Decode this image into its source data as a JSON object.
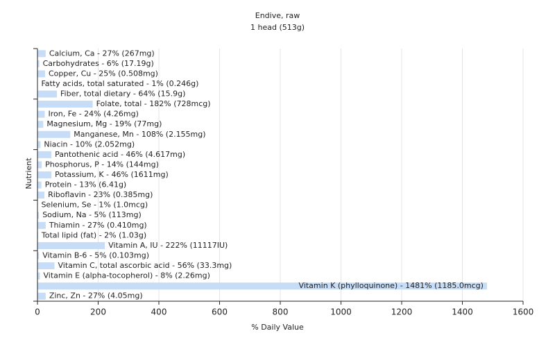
{
  "chart_data": {
    "type": "hbar",
    "title": "Endive, raw",
    "subtitle": "1 head (513g)",
    "x_label": "% Daily Value",
    "y_label": "Nutrient",
    "color": "#c6dcf7",
    "grid": true,
    "values": [
      27,
      6,
      25,
      1,
      64,
      182,
      24,
      19,
      108,
      10,
      46,
      14,
      46,
      13,
      23,
      1,
      5,
      27,
      2,
      222,
      5,
      56,
      8,
      1481,
      27
    ],
    "value_labels": [
      "Calcium, Ca - 27% (267mg)",
      "Carbohydrates - 6% (17.19g)",
      "Copper, Cu - 25% (0.508mg)",
      "Fatty acids, total saturated - 1% (0.246g)",
      "Fiber, total dietary - 64% (15.9g)",
      "Folate, total - 182% (728mcg)",
      "Iron, Fe - 24% (4.26mg)",
      "Magnesium, Mg - 19% (77mg)",
      "Manganese, Mn - 108% (2.155mg)",
      "Niacin - 10% (2.052mg)",
      "Pantothenic acid - 46% (4.617mg)",
      "Phosphorus, P - 14% (144mg)",
      "Potassium, K - 46% (1611mg)",
      "Protein - 13% (6.41g)",
      "Riboflavin - 23% (0.385mg)",
      "Selenium, Se - 1% (1.0mcg)",
      "Sodium, Na - 5% (113mg)",
      "Thiamin - 27% (0.410mg)",
      "Total lipid (fat) - 2% (1.03g)",
      "Vitamin A, IU - 222% (11117IU)",
      "Vitamin B-6 - 5% (0.103mg)",
      "Vitamin C, total ascorbic acid - 56% (33.3mg)",
      "Vitamin E (alpha-tocopherol) - 8% (2.26mg)",
      "Vitamin K (phylloquinone) - 1481% (1185.0mcg)",
      "Zinc, Zn - 27% (4.05mg)"
    ],
    "xlim": [
      0,
      1600
    ],
    "xticks": [
      0,
      200,
      400,
      600,
      800,
      1000,
      1200,
      1400,
      1600
    ]
  }
}
